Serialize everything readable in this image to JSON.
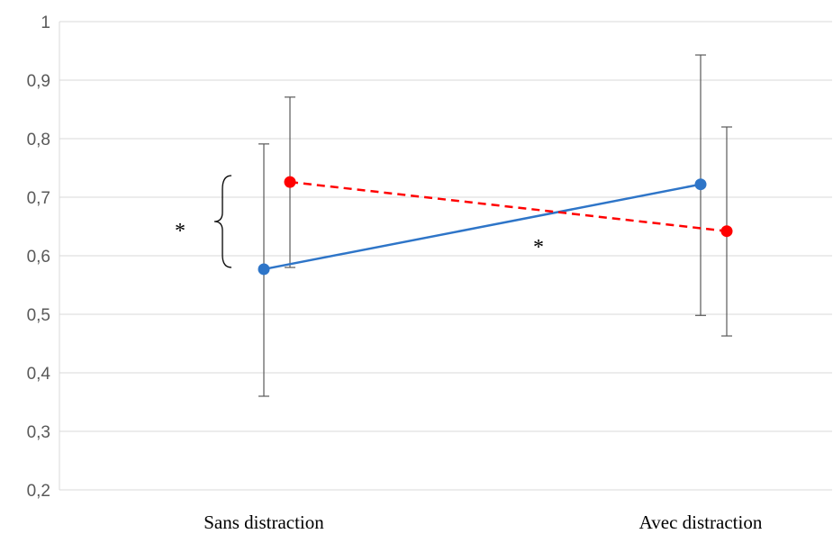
{
  "chart_data": {
    "type": "line",
    "categories": [
      "Sans distraction",
      "Avec distraction"
    ],
    "ylim": [
      0.2,
      1.0
    ],
    "yticks": [
      "0,2",
      "0,3",
      "0,4",
      "0,5",
      "0,6",
      "0,7",
      "0,8",
      "0,9",
      "1"
    ],
    "grid": true,
    "legend": "none",
    "series": [
      {
        "values": [
          0.577,
          0.722
        ],
        "err_low": [
          0.36,
          0.498
        ],
        "err_high": [
          0.791,
          0.943
        ],
        "color": "#2E75C8",
        "line_style": "solid"
      },
      {
        "values": [
          0.726,
          0.642
        ],
        "err_low": [
          0.58,
          0.463
        ],
        "err_high": [
          0.871,
          0.82
        ],
        "color": "#FF0000",
        "line_style": "dashed"
      }
    ],
    "annotations": [
      {
        "text": "*",
        "meaning": "bracket between series at Sans distraction"
      },
      {
        "text": "*",
        "meaning": "between categories"
      }
    ]
  }
}
